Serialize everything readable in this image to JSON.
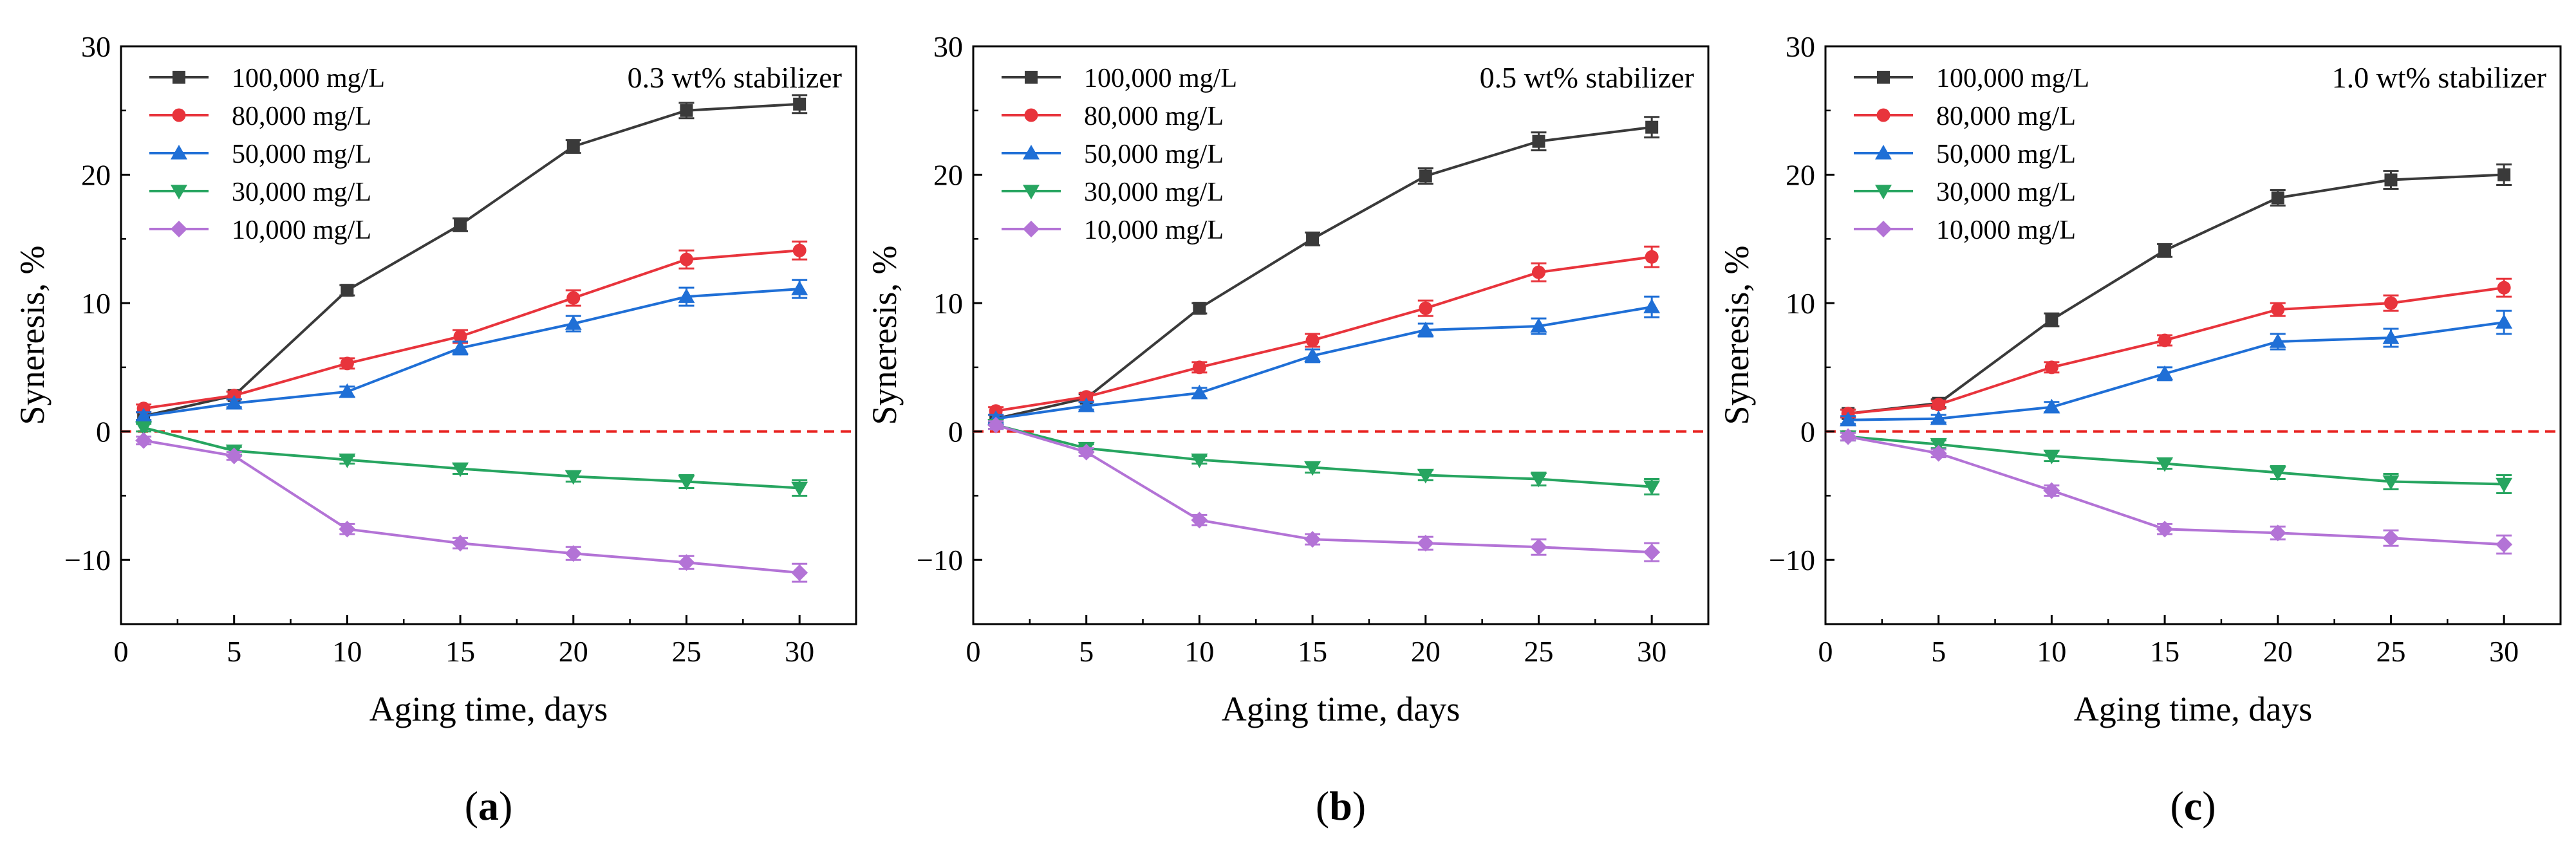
{
  "chart_data": [
    {
      "type": "line",
      "panel_label": "a",
      "annotation": "0.3 wt% stabilizer",
      "xlabel": "Aging time, days",
      "ylabel": "Syneresis, %",
      "xlim": [
        0,
        32.5
      ],
      "ylim": [
        -15,
        30
      ],
      "xticks": [
        0,
        5,
        10,
        15,
        20,
        25,
        30
      ],
      "yticks": [
        -10,
        0,
        10,
        20,
        30
      ],
      "x": [
        1,
        5,
        10,
        15,
        20,
        25,
        30
      ],
      "reference_line": 0,
      "series": [
        {
          "name": "100,000 mg/L",
          "color": "#3a3a3a",
          "marker": "square",
          "values": [
            1.2,
            2.8,
            11.0,
            16.1,
            22.2,
            25.0,
            25.5
          ],
          "errors": [
            0.3,
            0.3,
            0.4,
            0.5,
            0.5,
            0.6,
            0.7
          ]
        },
        {
          "name": "80,000 mg/L",
          "color": "#e8343c",
          "marker": "circle",
          "values": [
            1.8,
            2.8,
            5.3,
            7.4,
            10.4,
            13.4,
            14.1
          ],
          "errors": [
            0.3,
            0.3,
            0.4,
            0.5,
            0.6,
            0.7,
            0.7
          ]
        },
        {
          "name": "50,000 mg/L",
          "color": "#1f6fd6",
          "marker": "triangle-up",
          "values": [
            1.2,
            2.2,
            3.1,
            6.5,
            8.4,
            10.5,
            11.1
          ],
          "errors": [
            0.3,
            0.3,
            0.4,
            0.5,
            0.6,
            0.7,
            0.7
          ]
        },
        {
          "name": "30,000 mg/L",
          "color": "#27a560",
          "marker": "triangle-down",
          "values": [
            0.3,
            -1.5,
            -2.2,
            -2.9,
            -3.5,
            -3.9,
            -4.4
          ],
          "errors": [
            0.3,
            0.3,
            0.3,
            0.4,
            0.4,
            0.5,
            0.6
          ]
        },
        {
          "name": "10,000 mg/L",
          "color": "#b373d6",
          "marker": "diamond",
          "values": [
            -0.7,
            -1.9,
            -7.6,
            -8.7,
            -9.5,
            -10.2,
            -11.0
          ],
          "errors": [
            0.3,
            0.3,
            0.4,
            0.4,
            0.5,
            0.5,
            0.7
          ]
        }
      ]
    },
    {
      "type": "line",
      "panel_label": "b",
      "annotation": "0.5 wt% stabilizer",
      "xlabel": "Aging time, days",
      "ylabel": "Syneresis, %",
      "xlim": [
        0,
        32.5
      ],
      "ylim": [
        -15,
        30
      ],
      "xticks": [
        0,
        5,
        10,
        15,
        20,
        25,
        30
      ],
      "yticks": [
        -10,
        0,
        10,
        20,
        30
      ],
      "x": [
        1,
        5,
        10,
        15,
        20,
        25,
        30
      ],
      "reference_line": 0,
      "series": [
        {
          "name": "100,000 mg/L",
          "color": "#3a3a3a",
          "marker": "square",
          "values": [
            1.0,
            2.6,
            9.6,
            15.0,
            19.9,
            22.6,
            23.7
          ],
          "errors": [
            0.3,
            0.3,
            0.4,
            0.5,
            0.6,
            0.7,
            0.8
          ]
        },
        {
          "name": "80,000 mg/L",
          "color": "#e8343c",
          "marker": "circle",
          "values": [
            1.6,
            2.7,
            5.0,
            7.1,
            9.6,
            12.4,
            13.6
          ],
          "errors": [
            0.3,
            0.3,
            0.4,
            0.5,
            0.6,
            0.7,
            0.8
          ]
        },
        {
          "name": "50,000 mg/L",
          "color": "#1f6fd6",
          "marker": "triangle-up",
          "values": [
            1.0,
            2.0,
            3.0,
            5.9,
            7.9,
            8.2,
            9.7
          ],
          "errors": [
            0.3,
            0.3,
            0.4,
            0.5,
            0.5,
            0.6,
            0.8
          ]
        },
        {
          "name": "30,000 mg/L",
          "color": "#27a560",
          "marker": "triangle-down",
          "values": [
            0.5,
            -1.3,
            -2.2,
            -2.8,
            -3.4,
            -3.7,
            -4.3
          ],
          "errors": [
            0.3,
            0.3,
            0.3,
            0.4,
            0.4,
            0.5,
            0.6
          ]
        },
        {
          "name": "10,000 mg/L",
          "color": "#b373d6",
          "marker": "diamond",
          "values": [
            0.5,
            -1.6,
            -6.9,
            -8.4,
            -8.7,
            -9.0,
            -9.4
          ],
          "errors": [
            0.3,
            0.3,
            0.4,
            0.4,
            0.5,
            0.6,
            0.7
          ]
        }
      ]
    },
    {
      "type": "line",
      "panel_label": "c",
      "annotation": "1.0 wt% stabilizer",
      "xlabel": "Aging time, days",
      "ylabel": "Syneresis, %",
      "xlim": [
        0,
        32.5
      ],
      "ylim": [
        -15,
        30
      ],
      "xticks": [
        0,
        5,
        10,
        15,
        20,
        25,
        30
      ],
      "yticks": [
        -10,
        0,
        10,
        20,
        30
      ],
      "x": [
        1,
        5,
        10,
        15,
        20,
        25,
        30
      ],
      "reference_line": 0,
      "series": [
        {
          "name": "100,000 mg/L",
          "color": "#3a3a3a",
          "marker": "square",
          "values": [
            1.4,
            2.2,
            8.7,
            14.1,
            18.2,
            19.6,
            20.0
          ],
          "errors": [
            0.3,
            0.3,
            0.5,
            0.5,
            0.6,
            0.7,
            0.8
          ]
        },
        {
          "name": "80,000 mg/L",
          "color": "#e8343c",
          "marker": "circle",
          "values": [
            1.4,
            2.1,
            5.0,
            7.1,
            9.5,
            10.0,
            11.2
          ],
          "errors": [
            0.3,
            0.3,
            0.4,
            0.4,
            0.5,
            0.6,
            0.7
          ]
        },
        {
          "name": "50,000 mg/L",
          "color": "#1f6fd6",
          "marker": "triangle-up",
          "values": [
            0.9,
            1.0,
            1.9,
            4.5,
            7.0,
            7.3,
            8.5
          ],
          "errors": [
            0.3,
            0.3,
            0.4,
            0.5,
            0.6,
            0.7,
            0.9
          ]
        },
        {
          "name": "30,000 mg/L",
          "color": "#27a560",
          "marker": "triangle-down",
          "values": [
            -0.4,
            -1.0,
            -1.9,
            -2.5,
            -3.2,
            -3.9,
            -4.1
          ],
          "errors": [
            0.3,
            0.3,
            0.4,
            0.4,
            0.5,
            0.6,
            0.7
          ]
        },
        {
          "name": "10,000 mg/L",
          "color": "#b373d6",
          "marker": "diamond",
          "values": [
            -0.4,
            -1.7,
            -4.6,
            -7.6,
            -7.9,
            -8.3,
            -8.8
          ],
          "errors": [
            0.3,
            0.3,
            0.4,
            0.4,
            0.5,
            0.6,
            0.7
          ]
        }
      ]
    }
  ]
}
